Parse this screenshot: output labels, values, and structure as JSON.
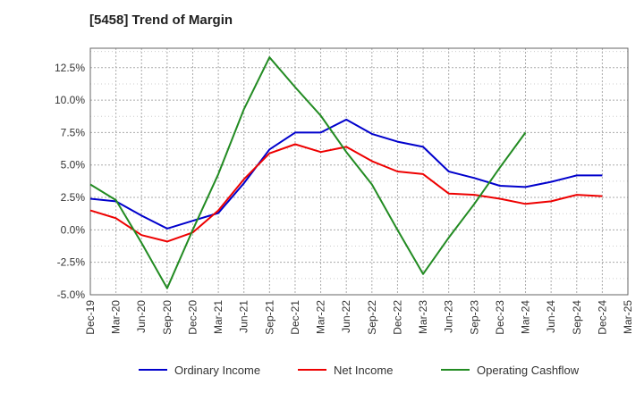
{
  "chart_data": {
    "type": "line",
    "title": "[5458]  Trend of Margin",
    "x": [
      "Dec-19",
      "Mar-20",
      "Jun-20",
      "Sep-20",
      "Dec-20",
      "Mar-21",
      "Jun-21",
      "Sep-21",
      "Dec-21",
      "Mar-22",
      "Jun-22",
      "Sep-22",
      "Dec-22",
      "Mar-23",
      "Jun-23",
      "Sep-23",
      "Dec-23",
      "Mar-24",
      "Jun-24",
      "Sep-24",
      "Dec-24",
      "Mar-25"
    ],
    "yticks": [
      "12.5%",
      "10.0%",
      "7.5%",
      "5.0%",
      "2.5%",
      "0.0%",
      "-2.5%",
      "-5.0%"
    ],
    "ylim": [
      -5.0,
      14.0
    ],
    "grid": true,
    "legend_position": "bottom",
    "series": [
      {
        "name": "Ordinary Income",
        "color": "#0000cc",
        "values": [
          2.4,
          2.2,
          1.1,
          0.1,
          0.7,
          1.3,
          3.6,
          6.2,
          7.5,
          7.5,
          8.5,
          7.4,
          6.8,
          6.4,
          4.5,
          4.0,
          3.4,
          3.3,
          3.7,
          4.2,
          4.2,
          null
        ]
      },
      {
        "name": "Net Income",
        "color": "#ee0000",
        "values": [
          1.5,
          0.9,
          -0.4,
          -0.9,
          -0.2,
          1.5,
          3.9,
          5.9,
          6.6,
          6.0,
          6.4,
          5.3,
          4.5,
          4.3,
          2.8,
          2.7,
          2.4,
          2.0,
          2.2,
          2.7,
          2.6,
          null
        ]
      },
      {
        "name": "Operating Cashflow",
        "color": "#228b22",
        "values": [
          3.5,
          2.3,
          -1.0,
          -4.5,
          0.0,
          4.3,
          9.3,
          13.3,
          11.0,
          8.8,
          6.0,
          3.5,
          0.0,
          -3.4,
          -0.6,
          2.0,
          4.8,
          7.5,
          null,
          null,
          null,
          null
        ]
      }
    ]
  }
}
